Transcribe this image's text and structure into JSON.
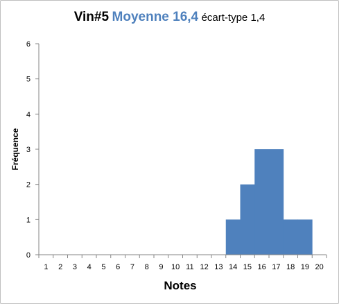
{
  "chart_data": {
    "type": "bar",
    "title": {
      "main": "Vin#5",
      "mean": "Moyenne 16,4",
      "sd": "écart-type 1,4"
    },
    "xlabel": "Notes",
    "ylabel": "Fréquence",
    "categories": [
      "1",
      "2",
      "3",
      "4",
      "5",
      "6",
      "7",
      "8",
      "9",
      "10",
      "11",
      "12",
      "13",
      "14",
      "15",
      "16",
      "17",
      "18",
      "19",
      "20"
    ],
    "values": [
      0,
      0,
      0,
      0,
      0,
      0,
      0,
      0,
      0,
      0,
      0,
      0,
      0,
      1,
      2,
      3,
      3,
      1,
      1,
      0
    ],
    "ylim": [
      0,
      6
    ],
    "yticks": [
      "0",
      "1",
      "2",
      "3",
      "4",
      "5",
      "6"
    ],
    "grid": false,
    "legend": "none",
    "colors": {
      "bar": "#4f81bd",
      "mean_text": "#4f81bd",
      "axis": "#868686"
    }
  }
}
